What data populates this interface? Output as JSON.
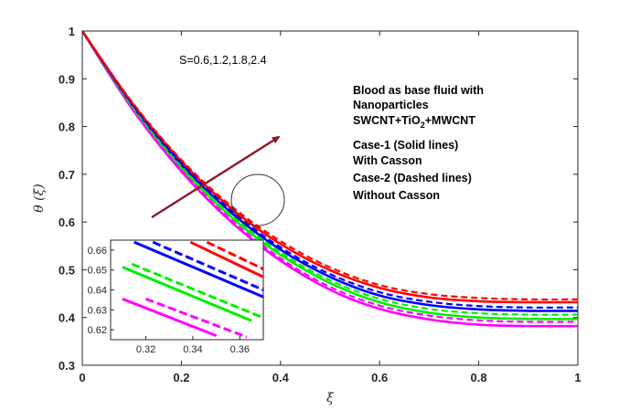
{
  "chart_data": {
    "type": "line",
    "title": "",
    "xlabel": "ξ",
    "ylabel": "θ (ξ)",
    "xlim": [
      0,
      1
    ],
    "ylim": [
      0.3,
      1
    ],
    "xticks": [
      "0",
      "0.2",
      "0.4",
      "0.6",
      "0.8",
      "1"
    ],
    "yticks": [
      "0.3",
      "0.4",
      "0.5",
      "0.6",
      "0.7",
      "0.8",
      "0.9",
      "1"
    ],
    "parameter_label": "S=0.6,1.2,1.8,2.4",
    "legend_lines": [
      "Blood as base fluid with",
      "Nanoparticles",
      "Case-1 (Solid lines)",
      "With Casson",
      "Case-2 (Dashed lines)",
      "Without Casson"
    ],
    "composition": {
      "a": "SWCNT+TiO",
      "sub": "2",
      "b": "+MWCNT"
    },
    "arrow_annotation": "increasing S",
    "series": [
      {
        "name": "S=0.6 (Casson)",
        "color": "#ff00ff",
        "dash": false,
        "x": [
          0,
          0.1,
          0.2,
          0.3,
          0.4,
          0.5,
          0.6,
          0.7,
          0.8,
          0.9,
          1
        ],
        "y": [
          1,
          0.838,
          0.706,
          0.601,
          0.519,
          0.458,
          0.418,
          0.396,
          0.385,
          0.382,
          0.382
        ]
      },
      {
        "name": "S=1.2 (Casson)",
        "color": "#00ee00",
        "dash": false,
        "x": [
          0,
          0.1,
          0.2,
          0.3,
          0.4,
          0.5,
          0.6,
          0.7,
          0.8,
          0.9,
          1
        ],
        "y": [
          1,
          0.842,
          0.713,
          0.611,
          0.531,
          0.472,
          0.432,
          0.41,
          0.4,
          0.397,
          0.397
        ]
      },
      {
        "name": "S=1.8 (Casson)",
        "color": "#0000ff",
        "dash": false,
        "x": [
          0,
          0.1,
          0.2,
          0.3,
          0.4,
          0.5,
          0.6,
          0.7,
          0.8,
          0.9,
          1
        ],
        "y": [
          1,
          0.846,
          0.72,
          0.62,
          0.542,
          0.485,
          0.446,
          0.426,
          0.417,
          0.414,
          0.414
        ]
      },
      {
        "name": "S=2.4 (Casson)",
        "color": "#ff0000",
        "dash": false,
        "x": [
          0,
          0.1,
          0.2,
          0.3,
          0.4,
          0.5,
          0.6,
          0.7,
          0.8,
          0.9,
          1
        ],
        "y": [
          1,
          0.85,
          0.727,
          0.629,
          0.554,
          0.499,
          0.462,
          0.442,
          0.434,
          0.432,
          0.432
        ]
      },
      {
        "name": "S=0.6 (no Casson)",
        "color": "#ff00ff",
        "dash": true,
        "x": [
          0,
          0.1,
          0.2,
          0.3,
          0.4,
          0.5,
          0.6,
          0.7,
          0.8,
          0.9,
          1
        ],
        "y": [
          1,
          0.84,
          0.709,
          0.605,
          0.524,
          0.464,
          0.425,
          0.404,
          0.394,
          0.391,
          0.391
        ]
      },
      {
        "name": "S=1.2 (no Casson)",
        "color": "#00ee00",
        "dash": true,
        "x": [
          0,
          0.1,
          0.2,
          0.3,
          0.4,
          0.5,
          0.6,
          0.7,
          0.8,
          0.9,
          1
        ],
        "y": [
          1,
          0.844,
          0.716,
          0.615,
          0.536,
          0.478,
          0.439,
          0.418,
          0.409,
          0.406,
          0.406
        ]
      },
      {
        "name": "S=1.8 (no Casson)",
        "color": "#0000ff",
        "dash": true,
        "x": [
          0,
          0.1,
          0.2,
          0.3,
          0.4,
          0.5,
          0.6,
          0.7,
          0.8,
          0.9,
          1
        ],
        "y": [
          1,
          0.848,
          0.723,
          0.624,
          0.547,
          0.491,
          0.453,
          0.433,
          0.424,
          0.421,
          0.421
        ]
      },
      {
        "name": "S=2.4 (no Casson)",
        "color": "#ff0000",
        "dash": true,
        "x": [
          0,
          0.1,
          0.2,
          0.3,
          0.4,
          0.5,
          0.6,
          0.7,
          0.8,
          0.9,
          1
        ],
        "y": [
          1,
          0.852,
          0.73,
          0.634,
          0.56,
          0.505,
          0.468,
          0.449,
          0.441,
          0.438,
          0.438
        ]
      }
    ],
    "inset": {
      "xlim": [
        0.305,
        0.37
      ],
      "ylim": [
        0.615,
        0.665
      ],
      "xticks": [
        "0.32",
        "0.34",
        "0.36"
      ],
      "yticks": [
        "0.62",
        "0.63",
        "0.64",
        "0.65",
        "0.66"
      ],
      "series": [
        {
          "name": "S=0.6",
          "color": "#ff00ff",
          "solid": [
            [
              0.31,
              0.6355
            ],
            [
              0.35,
              0.617
            ]
          ],
          "dashed": [
            [
              0.32,
              0.6355
            ],
            [
              0.363,
              0.6163
            ]
          ]
        },
        {
          "name": "S=1.2",
          "color": "#00ee00",
          "solid": [
            [
              0.31,
              0.6515
            ],
            [
              0.365,
              0.6245
            ]
          ],
          "dashed": [
            [
              0.314,
              0.653
            ],
            [
              0.37,
              0.626
            ]
          ]
        },
        {
          "name": "S=1.8",
          "color": "#0000ff",
          "solid": [
            [
              0.315,
              0.664
            ],
            [
              0.37,
              0.6365
            ]
          ],
          "dashed": [
            [
              0.323,
              0.664
            ],
            [
              0.37,
              0.64
            ]
          ]
        },
        {
          "name": "S=2.4",
          "color": "#ff0000",
          "solid": [
            [
              0.339,
              0.664
            ],
            [
              0.37,
              0.6465
            ]
          ],
          "dashed": [
            [
              0.346,
              0.664
            ],
            [
              0.37,
              0.6505
            ]
          ]
        }
      ]
    }
  }
}
